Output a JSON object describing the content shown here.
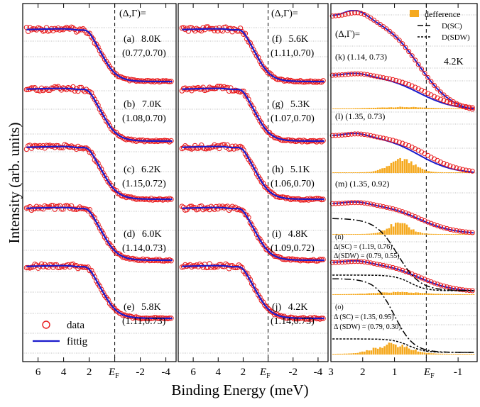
{
  "figure": {
    "ylabel": "Intensity (arb. units)",
    "xlabel": "Binding Energy (meV)",
    "ef_label": "E",
    "ef_sub": "F",
    "delta_gamma_label": "(Δ,Γ)=",
    "colors": {
      "data": "#e8191b",
      "fit": "#1a1acc",
      "difference": "#f5a91f",
      "grid": "#808080"
    }
  },
  "legend": {
    "data_label": "data",
    "fit_label": "fittig",
    "difference_label": "defference",
    "sc_label": "D(SC)",
    "sdw_label": "D(SDW)"
  },
  "chart_data": [
    {
      "type": "line",
      "panel": "left",
      "xlim": [
        7.2,
        -4.8
      ],
      "x_ticks": [
        "6",
        "4",
        "2",
        "-2",
        "-4"
      ],
      "x_tick_values": [
        6,
        4,
        2,
        -2,
        -4
      ],
      "ef_x": 0,
      "series_names": [
        "data",
        "fittig"
      ],
      "curves": [
        {
          "label": "(a)",
          "temp": "8.0K",
          "params": "(0.77,0.70)",
          "delta": 0.77,
          "gamma": 0.7
        },
        {
          "label": "(b)",
          "temp": "7.0K",
          "params": "(1.08,0.70)",
          "delta": 1.08,
          "gamma": 0.7
        },
        {
          "label": "(c)",
          "temp": "6.2K",
          "params": "(1.15,0.72)",
          "delta": 1.15,
          "gamma": 0.72
        },
        {
          "label": "(d)",
          "temp": "6.0K",
          "params": "(1.14,0.73)",
          "delta": 1.14,
          "gamma": 0.73
        },
        {
          "label": "(e)",
          "temp": "5.8K",
          "params": "(1.11,0.73)",
          "delta": 1.11,
          "gamma": 0.73
        }
      ]
    },
    {
      "type": "line",
      "panel": "middle",
      "xlim": [
        7.2,
        -4.8
      ],
      "x_ticks": [
        "6",
        "4",
        "2",
        "-2",
        "-4"
      ],
      "x_tick_values": [
        6,
        4,
        2,
        -2,
        -4
      ],
      "ef_x": 0,
      "series_names": [
        "data",
        "fittig"
      ],
      "curves": [
        {
          "label": "(f)",
          "temp": "5.6K",
          "params": "(1.11,0.70)",
          "delta": 1.11,
          "gamma": 0.7
        },
        {
          "label": "(g)",
          "temp": "5.3K",
          "params": "(1.07,0.70)",
          "delta": 1.07,
          "gamma": 0.7
        },
        {
          "label": "(h)",
          "temp": "5.1K",
          "params": "(1.06,0.70)",
          "delta": 1.06,
          "gamma": 0.7
        },
        {
          "label": "(i)",
          "temp": "4.8K",
          "params": "(1.09,0.72)",
          "delta": 1.09,
          "gamma": 0.72
        },
        {
          "label": "(j)",
          "temp": "4.2K",
          "params": "(1.14,0.73)",
          "delta": 1.14,
          "gamma": 0.73
        }
      ]
    },
    {
      "type": "line",
      "panel": "right",
      "temperature": "4.2K",
      "xlim": [
        3,
        -1.6
      ],
      "x_ticks": [
        "3",
        "2",
        "1",
        "-1"
      ],
      "x_tick_values": [
        3,
        2,
        1,
        -1
      ],
      "ef_x": 0,
      "series_names": [
        "data",
        "fittig",
        "defference",
        "D(SC)",
        "D(SDW)"
      ],
      "curves": [
        {
          "label": "(k)",
          "params": "(1.14, 0.73)",
          "delta": 1.14,
          "gamma": 0.73
        },
        {
          "label": "(l)",
          "params": "(1.35, 0.73)",
          "delta": 1.35,
          "gamma": 0.73
        },
        {
          "label": "(m)",
          "params": "(1.35, 0.92)",
          "delta": 1.35,
          "gamma": 0.92
        },
        {
          "label": "(n)",
          "sc_text": "Δ(SC) = (1.19, 0.76)",
          "sdw_text": "Δ(SDW) = (0.79, 0.55)",
          "sc": [
            1.19,
            0.76
          ],
          "sdw": [
            0.79,
            0.55
          ]
        },
        {
          "label": "(o)",
          "sc_text": "Δ (SC) = (1.35, 0.95)",
          "sdw_text": "Δ (SDW) = (0.79, 0.30)",
          "sc": [
            1.35,
            0.95
          ],
          "sdw": [
            0.79,
            0.3
          ]
        }
      ]
    }
  ]
}
